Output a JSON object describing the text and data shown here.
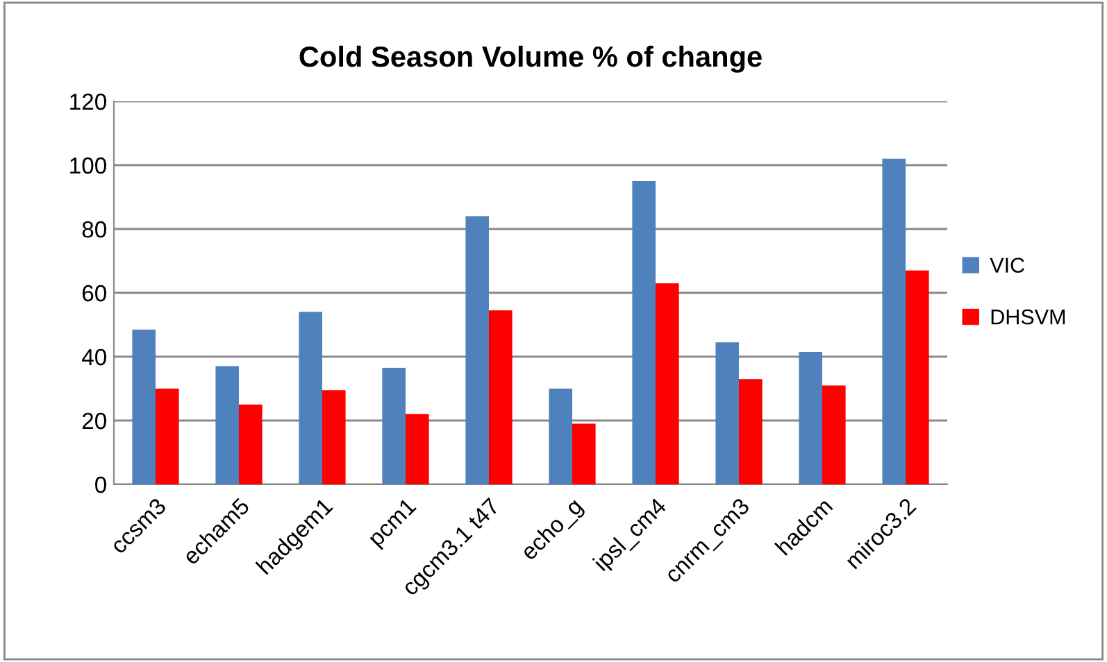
{
  "chart_data": {
    "type": "bar",
    "title": "Cold Season Volume % of change",
    "categories": [
      "ccsm3",
      "echam5",
      "hadgem1",
      "pcm1",
      "cgcm3.1 t47",
      "echo_g",
      "ipsl_cm4",
      "cnrm_cm3",
      "hadcm",
      "miroc3.2"
    ],
    "series": [
      {
        "name": "VIC",
        "color": "#4f81bd",
        "values": [
          48.5,
          37,
          54,
          36.5,
          84,
          30,
          95,
          44.5,
          41.5,
          102
        ]
      },
      {
        "name": "DHSVM",
        "color": "#ff0000",
        "values": [
          30,
          25,
          29.5,
          22,
          54.5,
          19,
          63,
          33,
          31,
          67
        ]
      }
    ],
    "ylim": [
      0,
      120
    ],
    "yticks": [
      0,
      20,
      40,
      60,
      80,
      100,
      120
    ],
    "grid": "y",
    "legend": "right"
  }
}
